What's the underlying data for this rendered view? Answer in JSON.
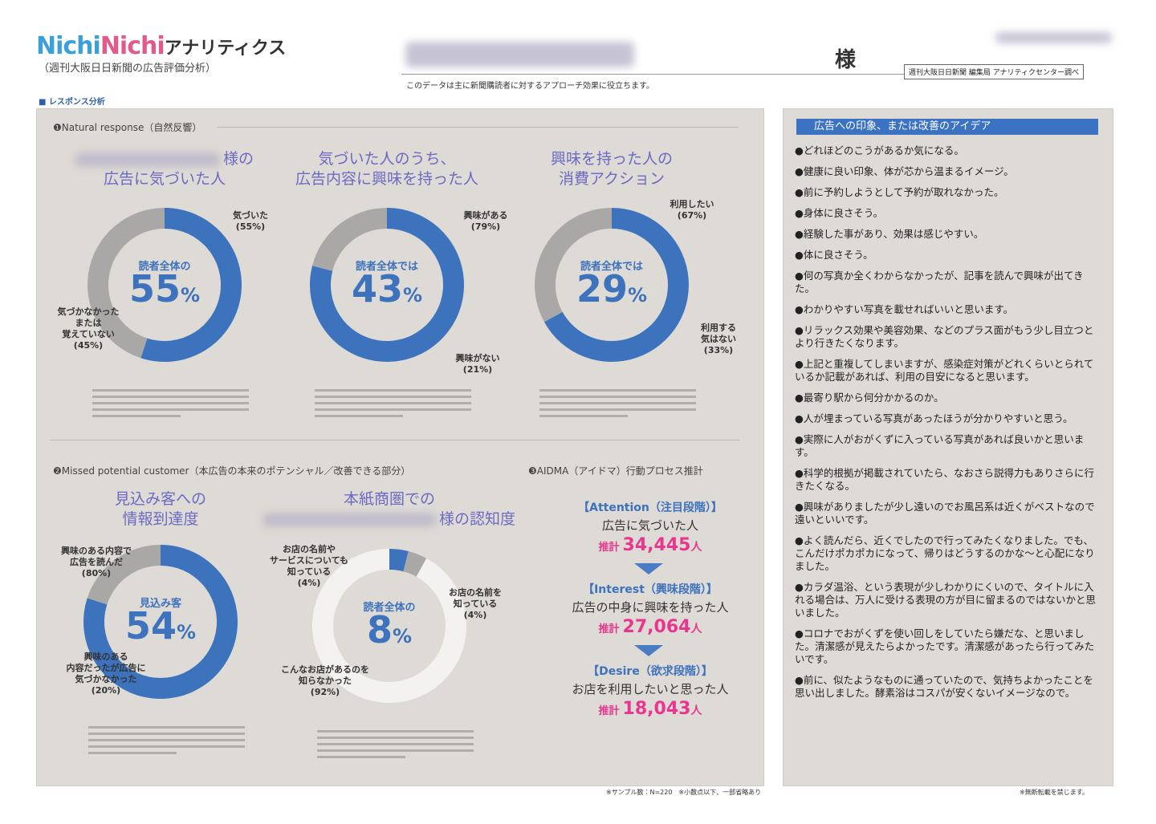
{
  "header": {
    "brand_a": "Nichi",
    "brand_b": "Nichi",
    "brand_suffix": "アナリティクス",
    "subtitle": "（週刊大阪日日新聞の広告評価分析）",
    "honorific": "様",
    "source": "週刊大阪日日新聞 編集局 アナリティクセンター調べ",
    "note": "このデータは主に新聞購読者に対するアプローチ効果に役立ちます。",
    "section": "■ レスポンス分析"
  },
  "sections": [
    {
      "title": "❶Natural response（自然反響）"
    },
    {
      "title": "❷Missed potential customer（本広告の本来のポテンシャル／改善できる部分）"
    },
    {
      "title": "❸AIDMA（アイドマ）行動プロセス推計"
    }
  ],
  "donuts": [
    {
      "title": [
        "様の",
        "広告に気づいた人"
      ],
      "center_label": "読者全体の",
      "center_value": 55,
      "center_unit": "%",
      "segments": [
        {
          "label": [
            "気づいた"
          ],
          "value": 55,
          "value_label": "(55%)",
          "color": "#3d72bd"
        },
        {
          "label": [
            "気づかなかった",
            "または",
            "覚えていない"
          ],
          "value": 45,
          "value_label": "(45%)",
          "color": "#a9a8a6"
        }
      ]
    },
    {
      "title": [
        "気づいた人のうち、",
        "広告内容に興味を持った人"
      ],
      "center_label": "読者全体では",
      "center_value": 43,
      "center_unit": "%",
      "segments": [
        {
          "label": [
            "興味がある"
          ],
          "value": 79,
          "value_label": "(79%)",
          "color": "#3d72bd"
        },
        {
          "label": [
            "興味がない"
          ],
          "value": 21,
          "value_label": "(21%)",
          "color": "#a9a8a6"
        }
      ]
    },
    {
      "title": [
        "興味を持った人の",
        "消費アクション"
      ],
      "center_label": "読者全体では",
      "center_value": 29,
      "center_unit": "%",
      "segments": [
        {
          "label": [
            "利用したい"
          ],
          "value": 67,
          "value_label": "(67%)",
          "color": "#3d72bd"
        },
        {
          "label": [
            "利用する",
            "気はない"
          ],
          "value": 33,
          "value_label": "(33%)",
          "color": "#a9a8a6"
        }
      ]
    },
    {
      "title": [
        "見込み客への",
        "情報到達度"
      ],
      "center_label": "見込み客",
      "center_value": 54,
      "center_unit": "%",
      "segments": [
        {
          "label": [
            "興味のある内容で",
            "広告を読んだ"
          ],
          "value": 80,
          "value_label": "(80%)",
          "color": "#3d72bd"
        },
        {
          "label": [
            "興味のある",
            "内容だったが広告に",
            "気づかなかった"
          ],
          "value": 20,
          "value_label": "(20%)",
          "color": "#a9a8a6"
        }
      ]
    },
    {
      "title": [
        "本紙商圏での",
        "様の認知度"
      ],
      "center_label": "読者全体の",
      "center_value": 8,
      "center_unit": "%",
      "segments": [
        {
          "label": [
            "お店の名前や",
            "サービスについても",
            "知っている"
          ],
          "value": 4,
          "value_label": "(4%)",
          "color": "#3d72bd"
        },
        {
          "label": [
            "お店の名前を",
            "知っている"
          ],
          "value": 4,
          "value_label": "(4%)",
          "color": "#a9a8a6"
        },
        {
          "label": [
            "こんなお店があるのを",
            "知らなかった"
          ],
          "value": 92,
          "value_label": "(92%)",
          "color": "#f3f2f0"
        }
      ]
    }
  ],
  "aidma": [
    {
      "stage": "【Attention（注目段階）】",
      "desc": "広告に気づいた人",
      "prefix": "推計",
      "estimate": "34,445",
      "unit": "人"
    },
    {
      "stage": "【Interest（興味段階）】",
      "desc": "広告の中身に興味を持った人",
      "prefix": "推計",
      "estimate": "27,064",
      "unit": "人"
    },
    {
      "stage": "【Desire（欲求段階）】",
      "desc": "お店を利用したいと思った人",
      "prefix": "推計",
      "estimate": "18,043",
      "unit": "人"
    }
  ],
  "comments": {
    "title": "広告への印象、または改善のアイデア",
    "items": [
      "●どれほどのこうがあるか気になる。",
      "●健康に良い印象、体が芯から温まるイメージ。",
      "●前に予約しようとして予約が取れなかった。",
      "●身体に良さそう。",
      "●経験した事があり、効果は感じやすい。",
      "●体に良さそう。",
      "●何の写真か全くわからなかったが、記事を読んで興味が出てきた。",
      "●わかりやすい写真を載せればいいと思います。",
      "●リラックス効果や美容効果、などのプラス面がもう少し目立つとより行きたくなります。",
      "●上記と重複してしまいますが、感染症対策がどれくらいとられているか記載があれば、利用の目安になると思います。",
      "●最寄り駅から何分かかるのか。",
      "●人が埋まっている写真があったほうが分かりやすいと思う。",
      "●実際に人がおがくずに入っている写真があれば良いかと思います。",
      "●科学的根拠が掲載されていたら、なおさら説得力もありさらに行きたくなる。",
      "●興味がありましたが少し遠いのでお風呂系は近くがベストなので遠いといいです。",
      "●よく読んだら、近くでしたので行ってみたくなりました。でも、こんだけポカポカになって、帰りはどうするのかな～と心配になりました。",
      "●カラダ温浴、という表現が少しわかりにくいので、タイトルに入れる場合は、万人に受ける表現の方が目に留まるのではないかと思いました。",
      "●コロナでおがくずを使い回しをしていたら嫌だな、と思いました。清潔感が見えたらよかったです。清潔感があったら行ってみたいです。",
      "●前に、似たようなものに通っていたので、気持ちよかったことを思い出しました。酵素浴はコスパが安くないイメージなので。"
    ]
  },
  "footer": {
    "left": "※サンプル数：N=220　※小数点以下、一部省略あり",
    "right": "※無断転載を禁じます。"
  }
}
